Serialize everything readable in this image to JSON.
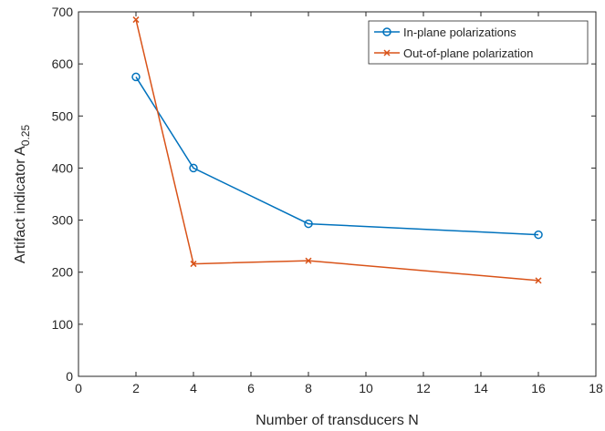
{
  "chart_data": {
    "type": "line",
    "xlabel": "Number of transducers N",
    "ylabel": {
      "main": "Artifact indicator A",
      "subscript": "0.25"
    },
    "xlim": [
      0,
      18
    ],
    "ylim": [
      0,
      700
    ],
    "xticks": [
      0,
      2,
      4,
      6,
      8,
      10,
      12,
      14,
      16,
      18
    ],
    "yticks": [
      0,
      100,
      200,
      300,
      400,
      500,
      600,
      700
    ],
    "grid": false,
    "legend_position": "top-right",
    "series": [
      {
        "name": "In-plane polarizations",
        "color": "#0072BD",
        "marker": "circle",
        "x": [
          2,
          4,
          8,
          16
        ],
        "y": [
          575,
          400,
          293,
          272
        ]
      },
      {
        "name": "Out-of-plane polarization",
        "color": "#D95319",
        "marker": "x",
        "x": [
          2,
          4,
          8,
          16
        ],
        "y": [
          685,
          216,
          222,
          184
        ]
      }
    ]
  }
}
